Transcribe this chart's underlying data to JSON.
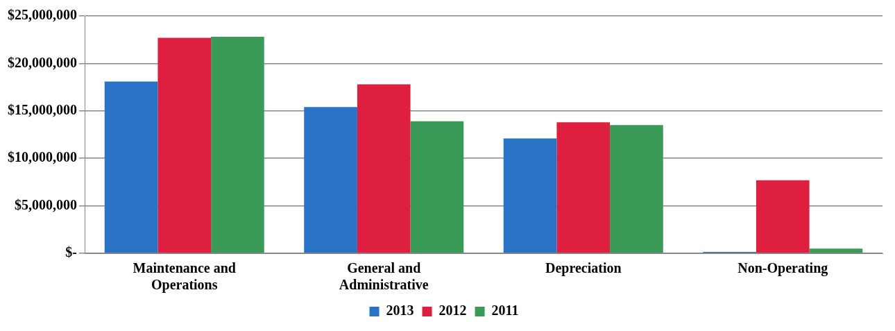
{
  "chart_data": {
    "type": "bar",
    "categories": [
      "Maintenance and Operations",
      "General and Administrative",
      "Depreciation",
      "Non-Operating"
    ],
    "series": [
      {
        "name": "2013",
        "color": "#2a72c6",
        "values": [
          18100000,
          15400000,
          12100000,
          150000
        ]
      },
      {
        "name": "2012",
        "color": "#de1f3f",
        "values": [
          22700000,
          17800000,
          13800000,
          7700000
        ]
      },
      {
        "name": "2011",
        "color": "#3a9a58",
        "values": [
          22800000,
          13900000,
          13500000,
          500000
        ]
      }
    ],
    "ylim": [
      0,
      25000000
    ],
    "yticks": [
      {
        "value": 0,
        "label": "$-"
      },
      {
        "value": 5000000,
        "label": "$5,000,000"
      },
      {
        "value": 10000000,
        "label": "$10,000,000"
      },
      {
        "value": 15000000,
        "label": "$15,000,000"
      },
      {
        "value": 20000000,
        "label": "$20,000,000"
      },
      {
        "value": 25000000,
        "label": "$25,000,000"
      }
    ],
    "grid": "y",
    "legend": "bottom"
  }
}
